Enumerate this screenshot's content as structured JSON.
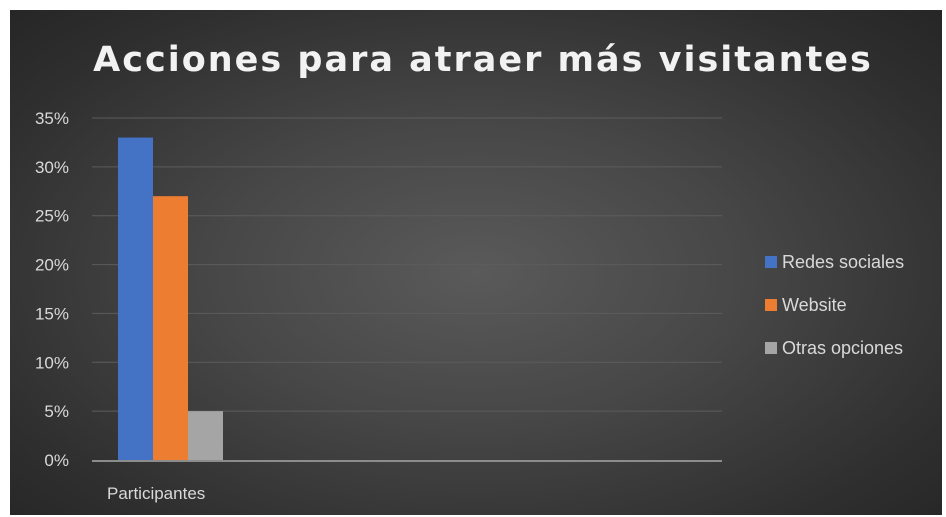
{
  "chart_data": {
    "type": "bar",
    "title": "Acciones para atraer más visitantes",
    "categories": [
      "Participantes"
    ],
    "series": [
      {
        "name": "Redes sociales",
        "values": [
          0.33
        ],
        "color": "#4472c4"
      },
      {
        "name": "Website",
        "values": [
          0.27
        ],
        "color": "#ed7d31"
      },
      {
        "name": "Otras opciones",
        "values": [
          0.05
        ],
        "color": "#a5a5a5"
      }
    ],
    "ylim": [
      0,
      0.35
    ],
    "yticks": [
      "0%",
      "5%",
      "10%",
      "15%",
      "20%",
      "25%",
      "30%",
      "35%"
    ],
    "xlabel": "",
    "ylabel": "",
    "grid": true,
    "legend_position": "right"
  }
}
